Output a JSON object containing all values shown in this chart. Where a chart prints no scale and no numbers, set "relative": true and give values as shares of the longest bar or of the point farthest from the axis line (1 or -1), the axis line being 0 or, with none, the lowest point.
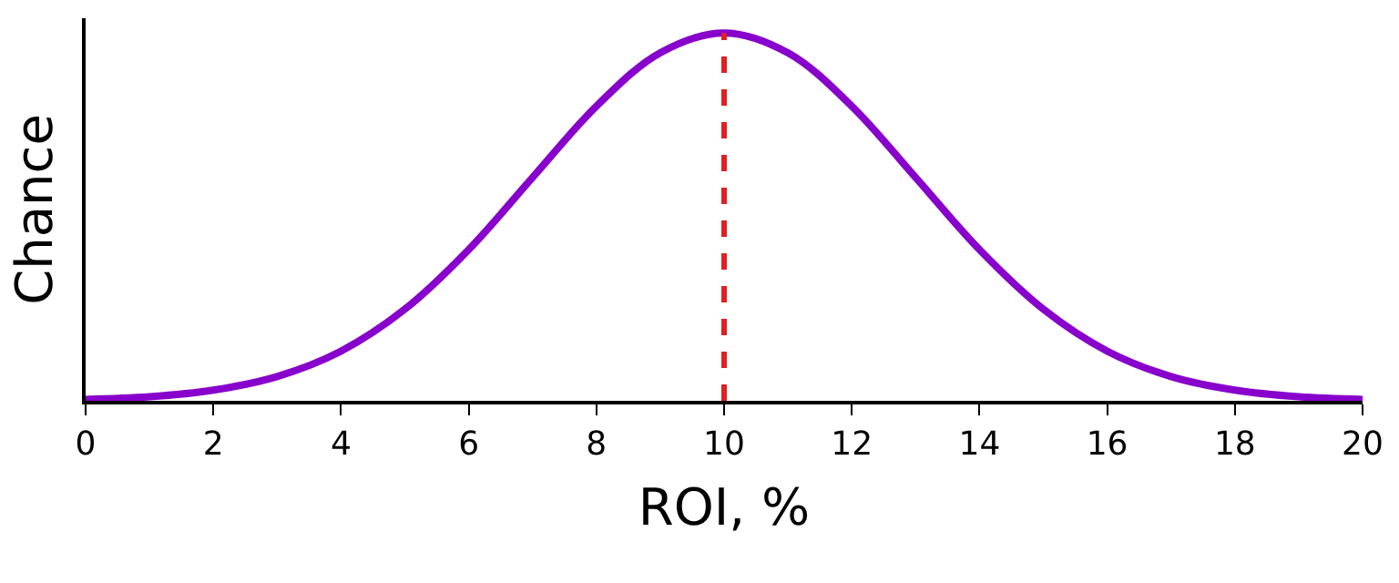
{
  "chart_data": {
    "type": "line",
    "xlabel": "ROI, %",
    "ylabel": "Chance",
    "relative": true,
    "x": [
      0,
      1,
      2,
      3,
      4,
      5,
      6,
      7,
      8,
      9,
      10,
      11,
      12,
      13,
      14,
      15,
      16,
      17,
      18,
      19,
      20
    ],
    "series": [
      {
        "color": "#8800cc",
        "values": [
          0.004,
          0.011,
          0.029,
          0.066,
          0.135,
          0.249,
          0.411,
          0.607,
          0.801,
          0.946,
          1,
          0.946,
          0.801,
          0.607,
          0.411,
          0.249,
          0.135,
          0.066,
          0.029,
          0.011,
          0.004
        ]
      }
    ],
    "xlim": [
      0,
      20
    ],
    "xticks": [
      0,
      2,
      4,
      6,
      8,
      10,
      12,
      14,
      16,
      18,
      20
    ],
    "ref_lines": [
      {
        "axis": "x",
        "value": 10,
        "color": "#e02020",
        "line_style": "dashed"
      }
    ],
    "tick_labels": "x",
    "marker": "none"
  }
}
